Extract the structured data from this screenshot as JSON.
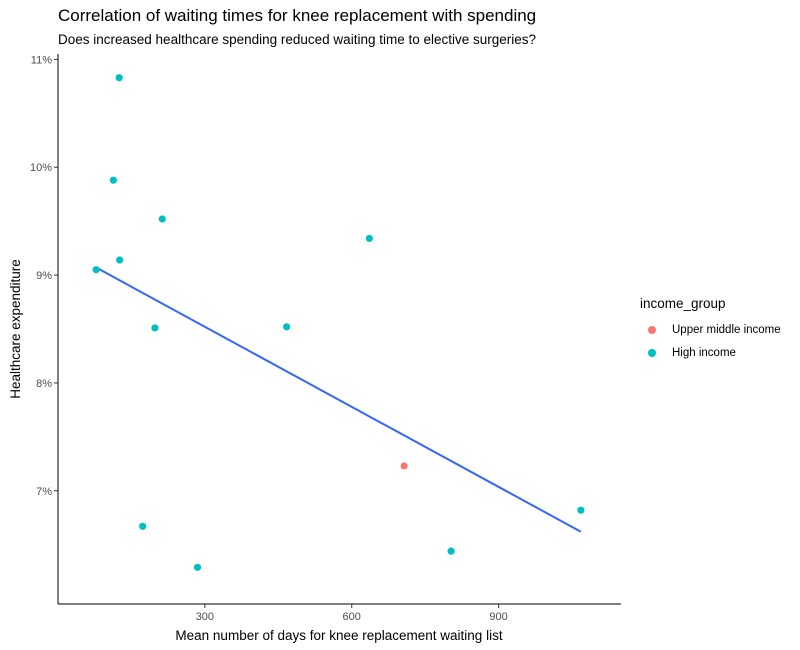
{
  "chart_data": {
    "type": "scatter",
    "title": "Correlation of waiting times for knee replacement with spending",
    "subtitle": "Does increased healthcare spending reduced waiting time to elective surgeries?",
    "xlabel": "Mean number of days for knee replacement waiting list",
    "ylabel": "Healthcare expenditure",
    "xlim": [
      0,
      1150
    ],
    "ylim": [
      5.95,
      11.05
    ],
    "x_ticks": [
      300,
      600,
      900
    ],
    "x_tick_labels": [
      "300",
      "600",
      "900"
    ],
    "y_ticks": [
      7,
      8,
      9,
      10,
      11
    ],
    "y_tick_labels": [
      "7%",
      "8%",
      "9%",
      "10%",
      "11%"
    ],
    "grid": false,
    "legend": {
      "title": "income_group",
      "position": "right",
      "entries": [
        {
          "label": "Upper middle income",
          "color": "#F8766D"
        },
        {
          "label": "High income",
          "color": "#00BFC4"
        }
      ]
    },
    "series": [
      {
        "name": "Upper middle income",
        "color": "#F8766D",
        "points": [
          {
            "x": 707,
            "y": 7.23
          }
        ]
      },
      {
        "name": "High income",
        "color": "#00BFC4",
        "points": [
          {
            "x": 78,
            "y": 9.05
          },
          {
            "x": 113,
            "y": 9.88
          },
          {
            "x": 125,
            "y": 10.83
          },
          {
            "x": 126,
            "y": 9.14
          },
          {
            "x": 173,
            "y": 6.67
          },
          {
            "x": 198,
            "y": 8.51
          },
          {
            "x": 213,
            "y": 9.52
          },
          {
            "x": 285,
            "y": 6.29
          },
          {
            "x": 467,
            "y": 8.52
          },
          {
            "x": 636,
            "y": 9.34
          },
          {
            "x": 803,
            "y": 6.44
          },
          {
            "x": 1068,
            "y": 6.82
          }
        ]
      }
    ],
    "trend_line": {
      "color": "#3366FF",
      "from": {
        "x": 78,
        "y": 9.07
      },
      "to": {
        "x": 1068,
        "y": 6.62
      }
    }
  }
}
